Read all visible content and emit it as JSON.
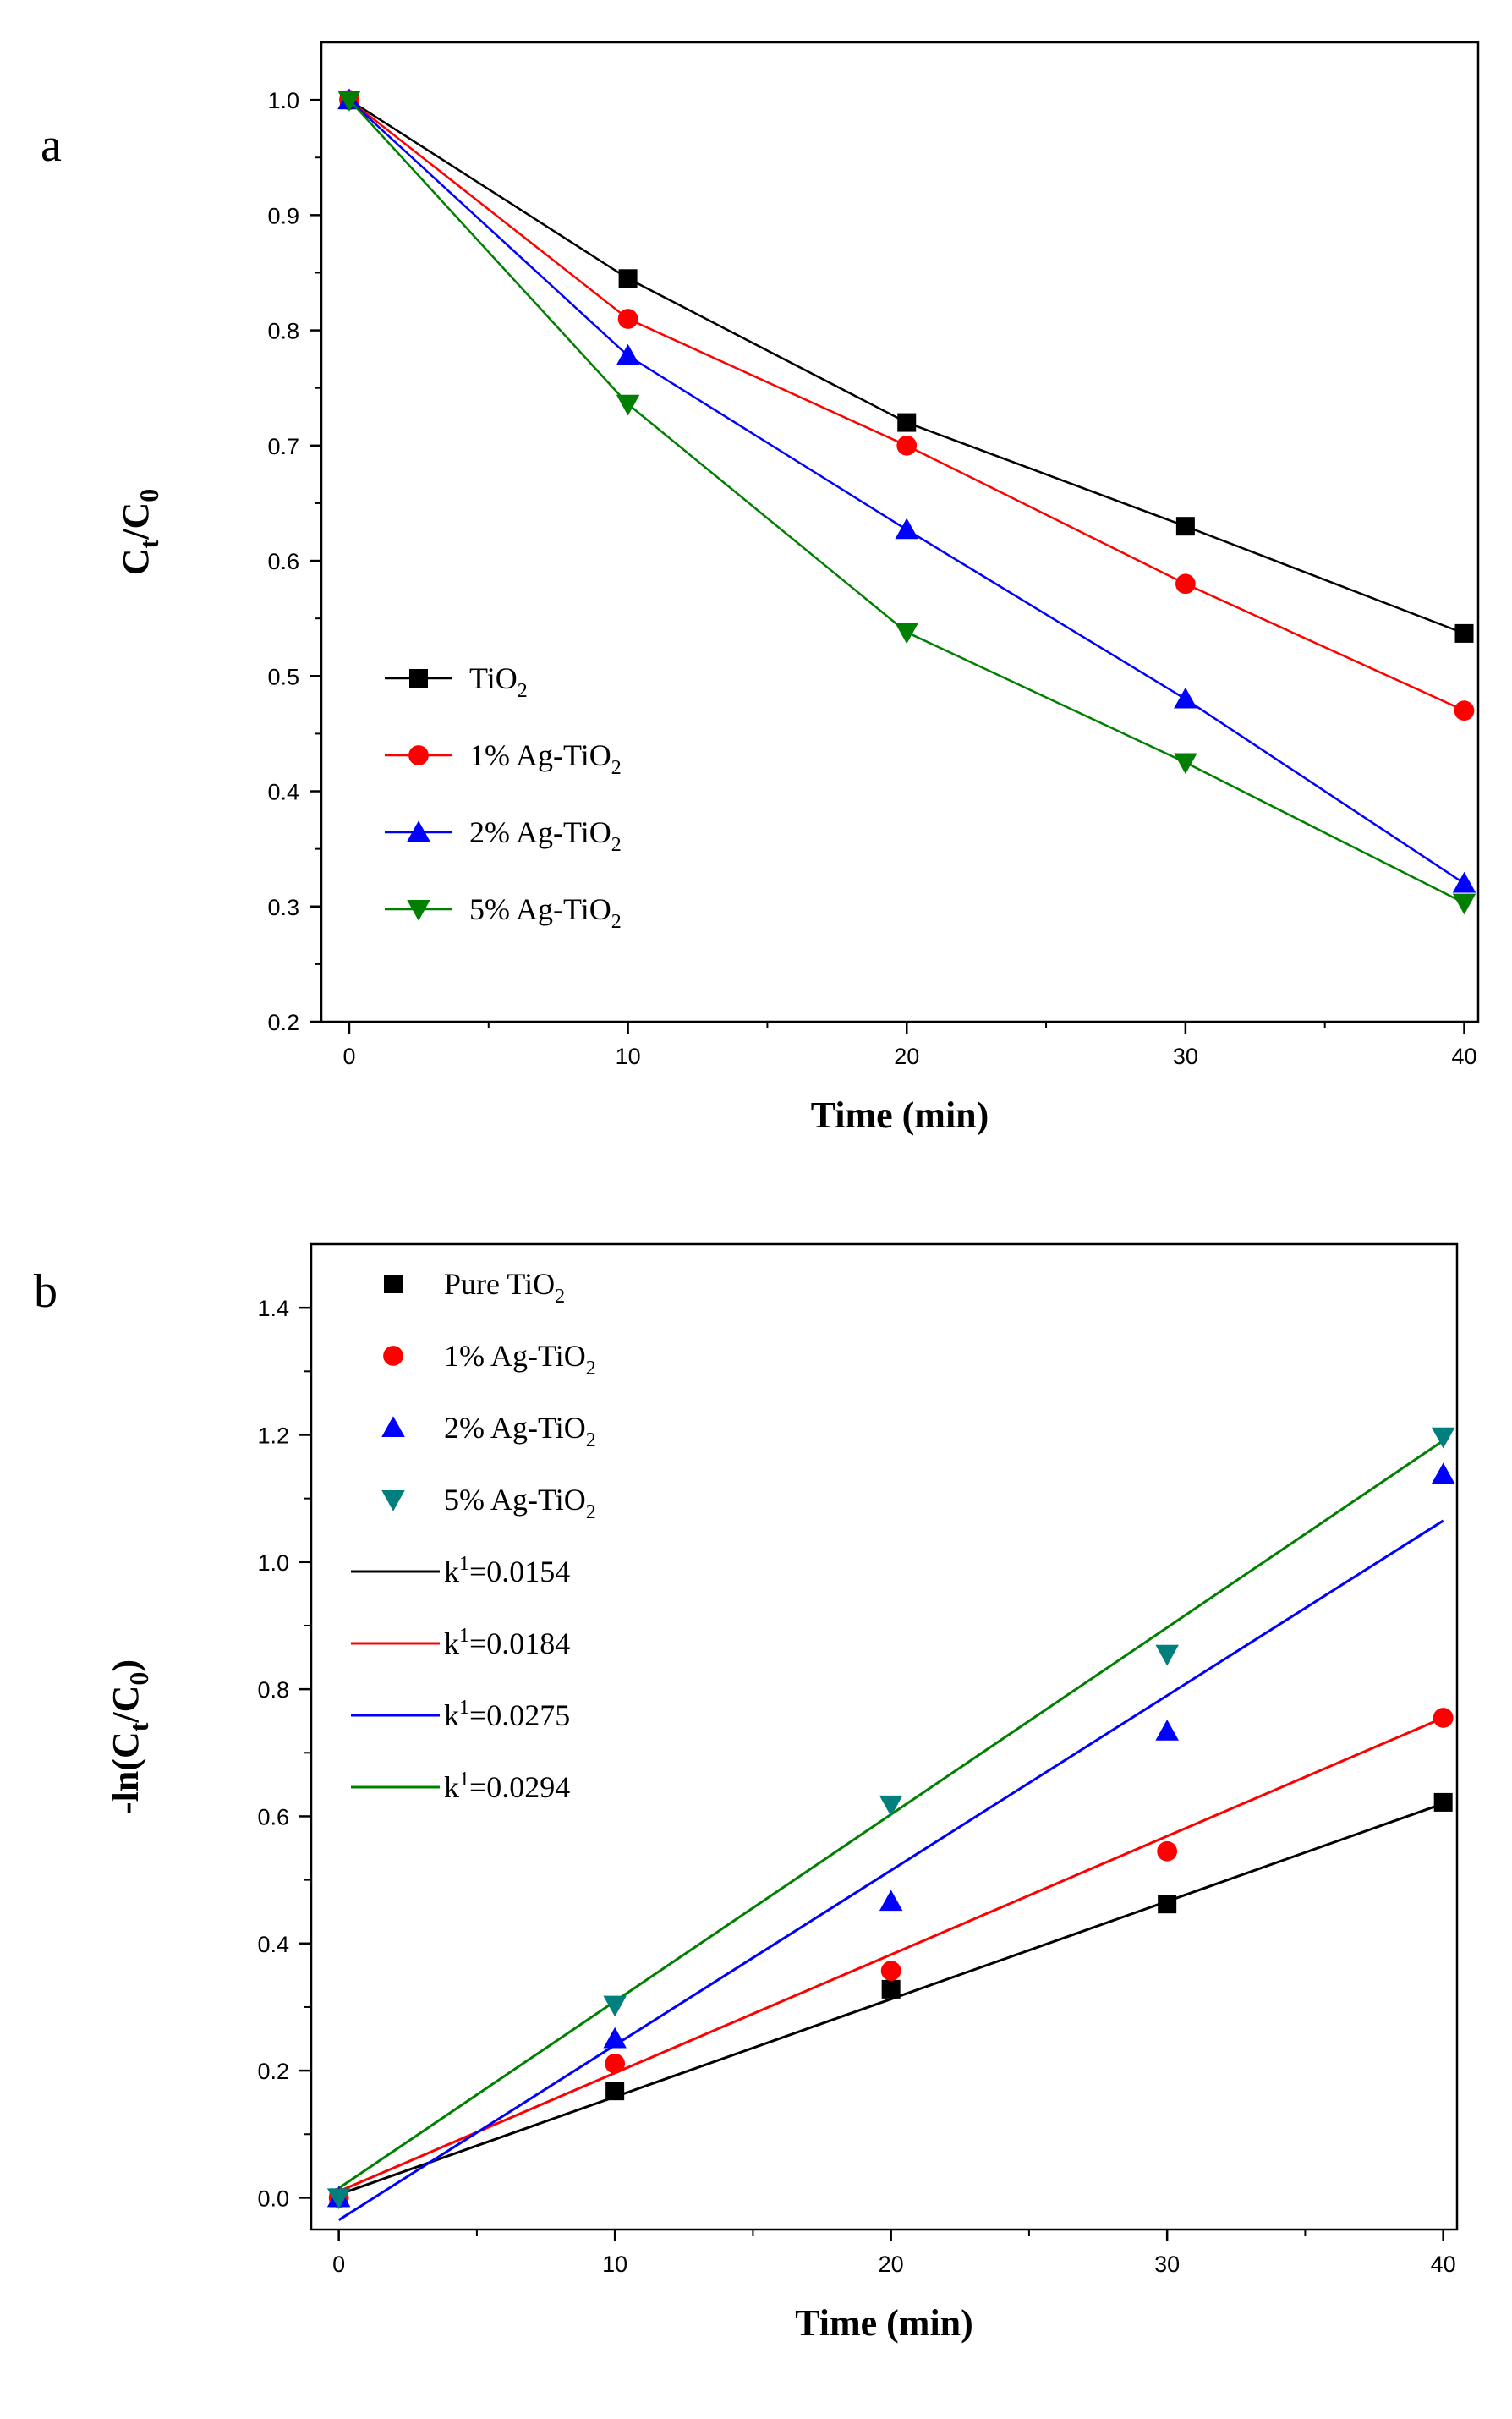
{
  "chart_data": [
    {
      "panel": "a",
      "type": "line",
      "xlabel": "Time (min)",
      "ylabel": {
        "main": "C",
        "sub1": "t",
        "mid": "/C",
        "sub2": "0"
      },
      "xlim": [
        -1,
        40.5
      ],
      "ylim": [
        0.2,
        1.05
      ],
      "xticks": [
        0,
        10,
        20,
        30,
        40
      ],
      "yticks": [
        0.2,
        0.3,
        0.4,
        0.5,
        0.6,
        0.7,
        0.8,
        0.9,
        1.0
      ],
      "legend_position": "center-left",
      "x": [
        0,
        10,
        20,
        30,
        40
      ],
      "series": [
        {
          "name": {
            "main": "TiO",
            "sub": "2"
          },
          "color": "#000000",
          "marker": "square",
          "values": [
            1.0,
            0.845,
            0.72,
            0.63,
            0.537
          ]
        },
        {
          "name": {
            "main": "1% Ag-TiO",
            "sub": "2"
          },
          "color": "#ff0000",
          "marker": "circle",
          "values": [
            1.0,
            0.81,
            0.7,
            0.58,
            0.47
          ]
        },
        {
          "name": {
            "main": "2% Ag-TiO",
            "sub": "2"
          },
          "color": "#0000ff",
          "marker": "triangle-up",
          "values": [
            1.0,
            0.778,
            0.627,
            0.48,
            0.32
          ]
        },
        {
          "name": {
            "main": "5% Ag-TiO",
            "sub": "2"
          },
          "color": "#007f00",
          "marker": "triangle-down",
          "values": [
            1.0,
            0.736,
            0.538,
            0.425,
            0.303
          ]
        }
      ]
    },
    {
      "panel": "b",
      "type": "scatter",
      "xlabel": "Time (min)",
      "ylabel": {
        "main": "-ln(C",
        "sub1": "t",
        "mid": "/C",
        "sub2": "0",
        "end": ")"
      },
      "xlim": [
        -1,
        40.5
      ],
      "ylim": [
        -0.05,
        1.5
      ],
      "xticks": [
        0,
        10,
        20,
        30,
        40
      ],
      "yticks": [
        0.0,
        0.2,
        0.4,
        0.6,
        0.8,
        1.0,
        1.2,
        1.4
      ],
      "ytick_labels": [
        "0.0",
        "0.2",
        "0.4",
        "0.6",
        "0.8",
        "1.0",
        "1.2",
        "1.4"
      ],
      "legend_position": "top-left",
      "x": [
        0,
        10,
        20,
        30,
        40
      ],
      "series": [
        {
          "name": {
            "main": "Pure TiO",
            "sub": "2"
          },
          "color": "#000000",
          "marker": "square",
          "values": [
            0.0,
            0.168,
            0.328,
            0.462,
            0.622
          ]
        },
        {
          "name": {
            "main": "1% Ag-TiO",
            "sub": "2"
          },
          "color": "#ff0000",
          "marker": "circle",
          "values": [
            0.0,
            0.211,
            0.357,
            0.545,
            0.755
          ]
        },
        {
          "name": {
            "main": "2% Ag-TiO",
            "sub": "2"
          },
          "color": "#0000ff",
          "marker": "triangle-up",
          "values": [
            0.0,
            0.25,
            0.466,
            0.734,
            1.138
          ]
        },
        {
          "name": {
            "main": "5% Ag-TiO",
            "sub": "2"
          },
          "color": "#007f7f",
          "marker": "triangle-down",
          "values": [
            0.0,
            0.303,
            0.618,
            0.855,
            1.197
          ]
        }
      ],
      "fits": [
        {
          "label": {
            "main": "k",
            "sup": "1",
            "end": "=0.0154"
          },
          "color": "#000000",
          "x0": 0,
          "y0": 0.005,
          "x1": 40,
          "y1": 0.62
        },
        {
          "label": {
            "main": "k",
            "sup": "1",
            "end": "=0.0184"
          },
          "color": "#ff0000",
          "x0": 0,
          "y0": 0.01,
          "x1": 40,
          "y1": 0.755
        },
        {
          "label": {
            "main": "k",
            "sup": "1",
            "end": "=0.0275"
          },
          "color": "#0000ff",
          "x0": 0,
          "y0": -0.035,
          "x1": 40,
          "y1": 1.065
        },
        {
          "label": {
            "main": "k",
            "sup": "1",
            "end": "=0.0294"
          },
          "color": "#008000",
          "x0": 0,
          "y0": 0.015,
          "x1": 40,
          "y1": 1.191
        }
      ]
    }
  ]
}
